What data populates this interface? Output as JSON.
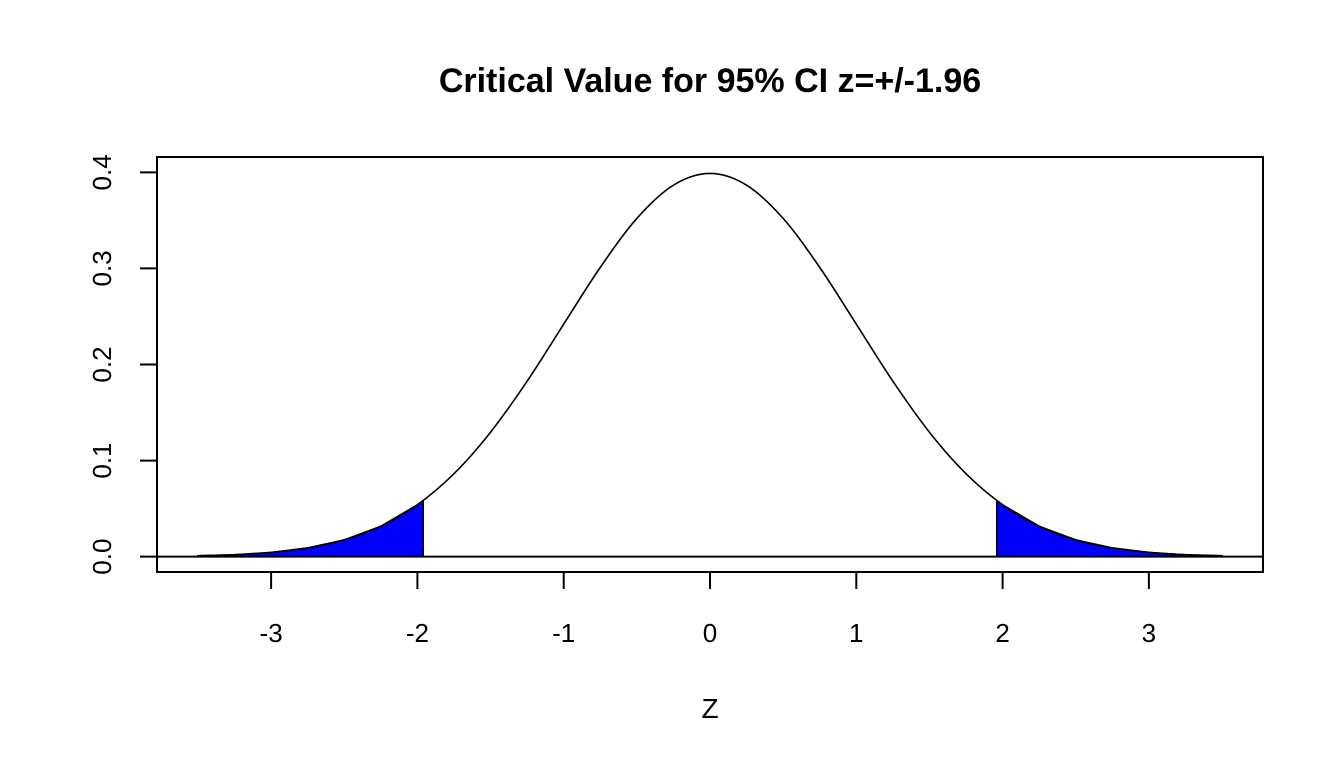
{
  "chart_data": {
    "type": "area",
    "title": "Critical Value for 95% CI z=+/-1.96",
    "xlabel": "Z",
    "ylabel": "",
    "xlim": [
      -3.78,
      3.78
    ],
    "ylim": [
      -0.016,
      0.416
    ],
    "x_ticks": [
      -3,
      -2,
      -1,
      0,
      1,
      2,
      3
    ],
    "x_tick_labels": [
      "-3",
      "-2",
      "-1",
      "0",
      "1",
      "2",
      "3"
    ],
    "y_ticks": [
      0.0,
      0.1,
      0.2,
      0.3,
      0.4
    ],
    "y_tick_labels": [
      "0.0",
      "0.1",
      "0.2",
      "0.3",
      "0.4"
    ],
    "grid": false,
    "baseline": 0,
    "series": [
      {
        "kind": "density-curve",
        "color": "#000000",
        "x": [
          -3.5,
          -3.25,
          -3.0,
          -2.75,
          -2.5,
          -2.25,
          -2.0,
          -1.75,
          -1.5,
          -1.25,
          -1.0,
          -0.75,
          -0.5,
          -0.25,
          0.0,
          0.25,
          0.5,
          0.75,
          1.0,
          1.25,
          1.5,
          1.75,
          2.0,
          2.25,
          2.5,
          2.75,
          3.0,
          3.25,
          3.5
        ],
        "y": [
          0.0009,
          0.002,
          0.0044,
          0.0091,
          0.0175,
          0.0317,
          0.054,
          0.0863,
          0.1295,
          0.1826,
          0.242,
          0.3011,
          0.3521,
          0.3867,
          0.3989,
          0.3867,
          0.3521,
          0.3011,
          0.242,
          0.1826,
          0.1295,
          0.0863,
          0.054,
          0.0317,
          0.0175,
          0.0091,
          0.0044,
          0.002,
          0.0009
        ]
      }
    ],
    "shaded_regions": [
      {
        "name": "lower-tail",
        "color": "#0000ff",
        "x": [
          -3.5,
          -3.25,
          -3.0,
          -2.75,
          -2.5,
          -2.25,
          -2.0,
          -1.96
        ],
        "y": [
          0.0009,
          0.002,
          0.0044,
          0.0091,
          0.0175,
          0.0317,
          0.054,
          0.0584
        ]
      },
      {
        "name": "upper-tail",
        "color": "#0000ff",
        "x": [
          1.96,
          2.0,
          2.25,
          2.5,
          2.75,
          3.0,
          3.25,
          3.5
        ],
        "y": [
          0.0584,
          0.054,
          0.0317,
          0.0175,
          0.0091,
          0.0044,
          0.002,
          0.0009
        ]
      }
    ]
  }
}
